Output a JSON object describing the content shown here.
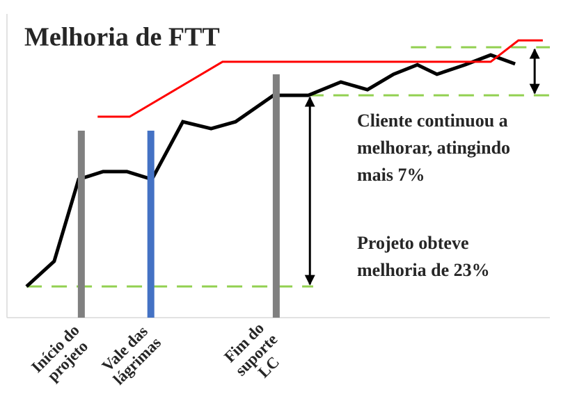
{
  "chart_data": {
    "type": "line",
    "title": "Melhoria de FTT",
    "xlim": [
      0,
      100
    ],
    "ylim": [
      0,
      100
    ],
    "series": [
      {
        "color": "#000000",
        "x": [
          3.6,
          8.7,
          13.2,
          17.7,
          22.1,
          26.7,
          32.4,
          37.6,
          42.1,
          49.1,
          55.5,
          61.5,
          66.4,
          71.2,
          75.6,
          79.2,
          84.4,
          89.1,
          93.6
        ],
        "values": [
          10.5,
          19.0,
          46.6,
          49.2,
          49.2,
          46.6,
          66.0,
          63.7,
          66.0,
          74.9,
          74.9,
          79.4,
          76.8,
          82.0,
          85.2,
          82.0,
          85.2,
          88.5,
          85.5
        ]
      },
      {
        "color": "#ff0000",
        "x": [
          16.7,
          22.6,
          39.7,
          89.1,
          94.2,
          98.7
        ],
        "values": [
          67.7,
          67.7,
          86.2,
          86.2,
          93.4,
          93.4
        ]
      }
    ],
    "markers": [
      {
        "label": [
          "Início do",
          "projeto"
        ],
        "x": 13.7,
        "top": 63.0,
        "color": "#808080"
      },
      {
        "label": [
          "Vale das",
          "lágrimas"
        ],
        "x": 26.5,
        "top": 63.0,
        "color": "#4472c4"
      },
      {
        "label": [
          "Fim do",
          "suporte",
          "LC"
        ],
        "x": 49.6,
        "top": 82.0,
        "color": "#808080"
      }
    ],
    "reference_lines": [
      {
        "y": 10.5,
        "x": [
          3.6,
          56.4
        ],
        "color": "#92d050"
      },
      {
        "y": 74.9,
        "x": [
          55.5,
          100
        ],
        "color": "#92d050"
      },
      {
        "y": 91.1,
        "x": [
          74.4,
          100
        ],
        "color": "#92d050"
      }
    ],
    "arrows": [
      {
        "x": 55.8,
        "y": [
          74.9,
          10.5
        ]
      },
      {
        "x": 97.2,
        "y": [
          91.1,
          74.9
        ]
      }
    ],
    "annotations": [
      [
        "Cliente continuou a",
        "melhorar, atingindo",
        "mais 7%"
      ],
      [
        "Projeto obteve",
        "melhoria de 23%"
      ]
    ]
  }
}
